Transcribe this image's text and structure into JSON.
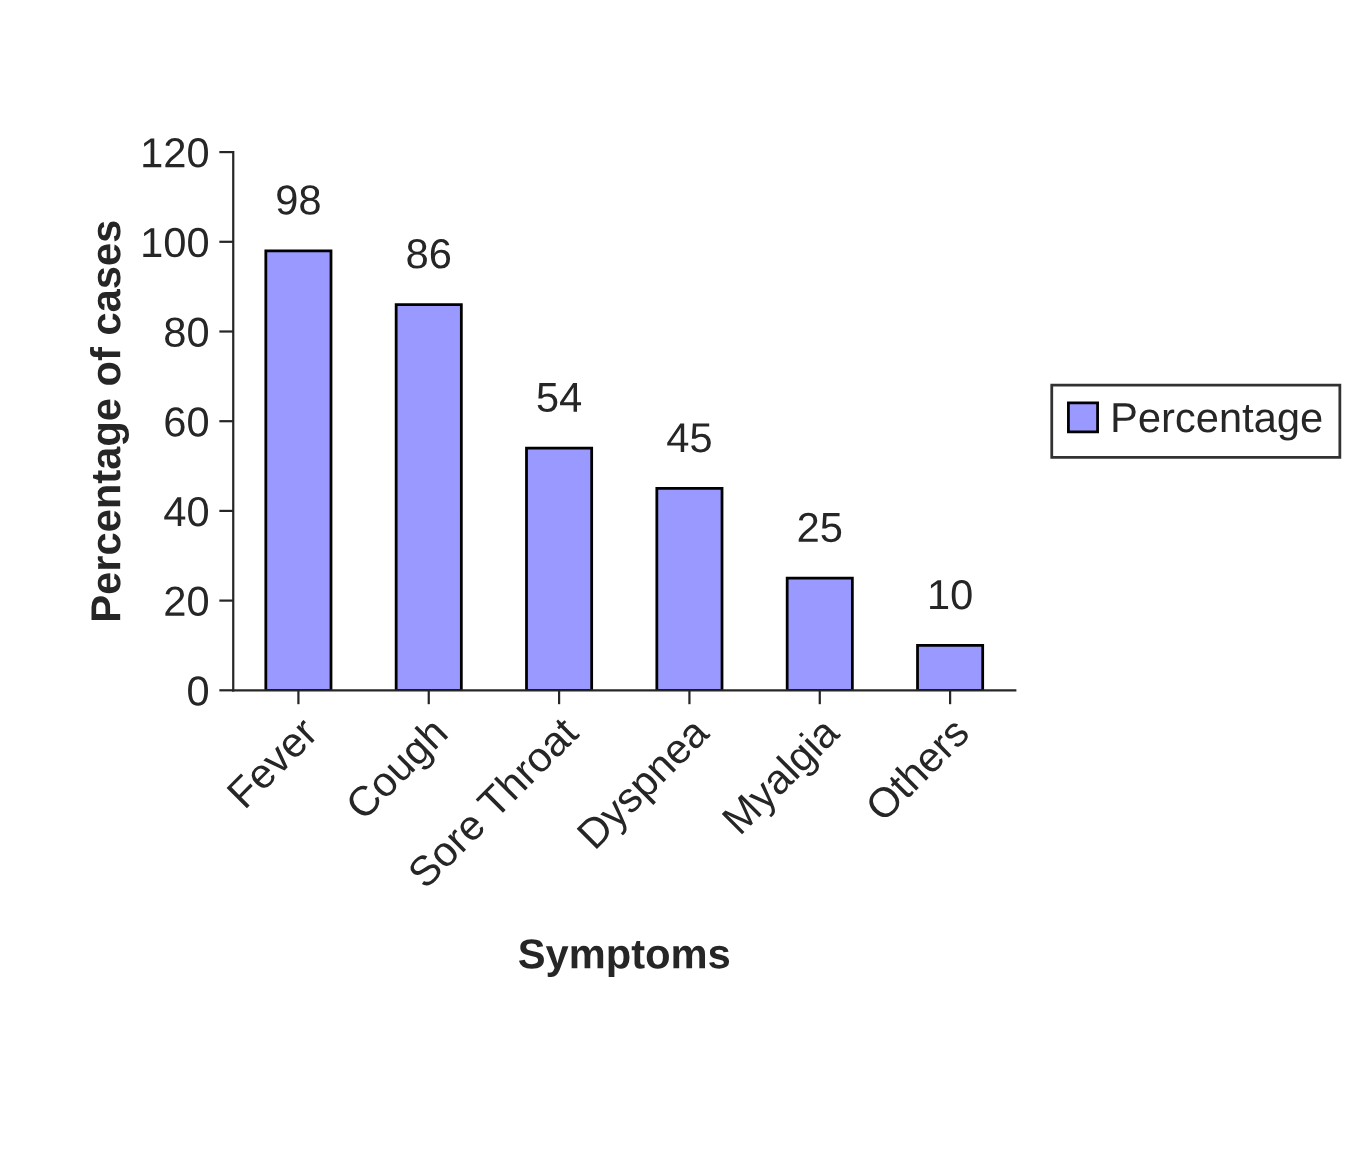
{
  "chart_data": {
    "type": "bar",
    "xlabel": "Symptoms",
    "ylabel": "Percentage of cases",
    "categories": [
      "Fever",
      "Cough",
      "Sore Throat",
      "Dyspnea",
      "Myalgia",
      "Others"
    ],
    "series": [
      {
        "name": "Percentage",
        "color": "#9999ff",
        "values": [
          98,
          86,
          54,
          45,
          25,
          10
        ]
      }
    ],
    "ylim": [
      0,
      120
    ],
    "yticks": [
      0,
      20,
      40,
      60,
      80,
      100,
      120
    ],
    "data_labels": true,
    "legend": "right",
    "grid": false
  }
}
